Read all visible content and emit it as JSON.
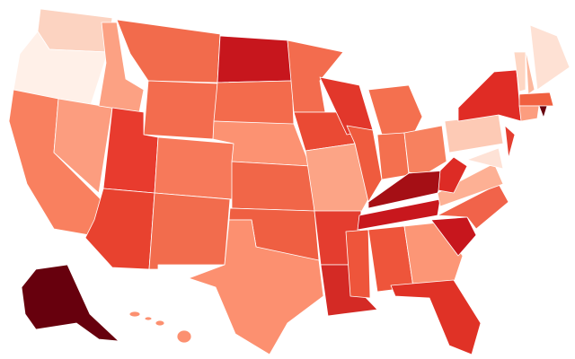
{
  "map": {
    "fills": [
      "#fcd3c1",
      "#fff0e8",
      "#f9805f",
      "#fc9d7f",
      "#fca183",
      "#f26b4c",
      "#f36c4e",
      "#e83b2e",
      "#e8422f",
      "#f7795a",
      "#f26c4d",
      "#c7161d",
      "#f36b4c",
      "#fc9272",
      "#f16648",
      "#ef5f42",
      "#fc9070",
      "#f36c4e",
      "#ea4a34",
      "#fca486",
      "#e43d2f",
      "#d42a25",
      "#e2372b",
      "#ef5b3e",
      "#f4704f",
      "#f4704f",
      "#f7815f",
      "#a50f15",
      "#c8171d",
      "#ee553b",
      "#ee553b",
      "#fc9676",
      "#e03226",
      "#c7161d",
      "#f1634a",
      "#fdb094",
      "#dd2b25",
      "#fdcab5",
      "#e02c25",
      "#fee2d6",
      "#e43d2f",
      "#fed7c4",
      "#fcb89e",
      "#fee1d4",
      "#f06040",
      "#fc9d7f",
      "#67000d",
      "#67000d",
      "#fc9070"
    ]
  }
}
